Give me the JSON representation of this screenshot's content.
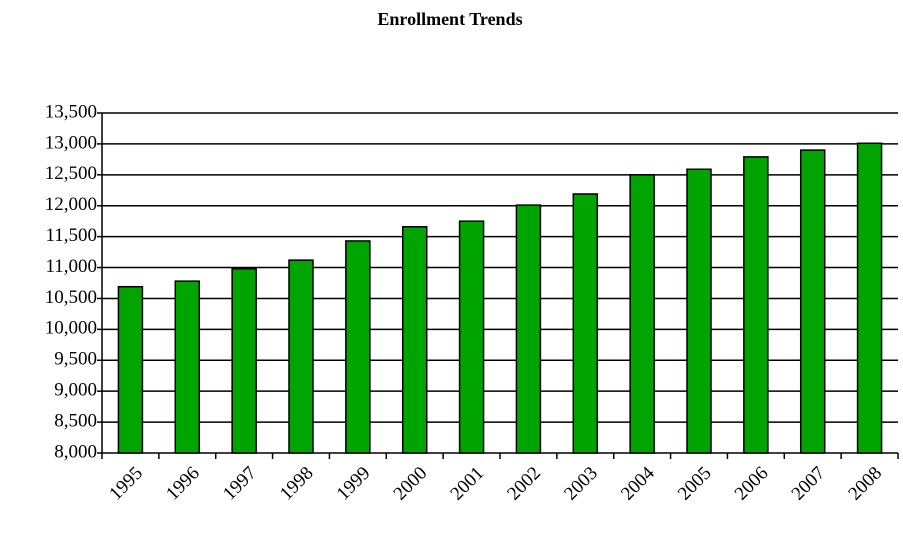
{
  "chart_data": {
    "type": "bar",
    "title": "Enrollment Trends",
    "categories": [
      "1995",
      "1996",
      "1997",
      "1998",
      "1999",
      "2000",
      "2001",
      "2002",
      "2003",
      "2004",
      "2005",
      "2006",
      "2007",
      "2008"
    ],
    "values": [
      10690,
      10780,
      10980,
      11120,
      11430,
      11660,
      11750,
      12010,
      12190,
      12500,
      12590,
      12790,
      12900,
      13010
    ],
    "color": "#00a400",
    "ylim": [
      8000,
      13500
    ],
    "yticks": [
      {
        "value": 8000,
        "label": "8,000"
      },
      {
        "value": 8500,
        "label": "8,500"
      },
      {
        "value": 9000,
        "label": "9,000"
      },
      {
        "value": 9500,
        "label": "9,500"
      },
      {
        "value": 10000,
        "label": "10,000"
      },
      {
        "value": 10500,
        "label": "10,500"
      },
      {
        "value": 11000,
        "label": "11,000"
      },
      {
        "value": 11500,
        "label": "11,500"
      },
      {
        "value": 12000,
        "label": "12,000"
      },
      {
        "value": 12500,
        "label": "12,500"
      },
      {
        "value": 13000,
        "label": "13,000"
      },
      {
        "value": 13500,
        "label": "13,500"
      }
    ],
    "grid": true
  }
}
